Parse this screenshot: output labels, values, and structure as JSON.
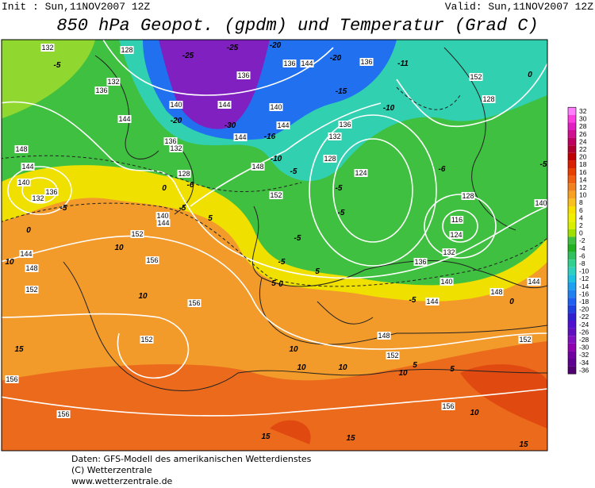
{
  "header": {
    "init": "Init : Sun,11NOV2007 12Z",
    "valid": "Valid: Sun,11NOV2007 12Z",
    "title": "850 hPa Geopot. (gpdm) und Temperatur (Grad C)"
  },
  "colorbar": {
    "levels": [
      "32",
      "30",
      "28",
      "26",
      "24",
      "22",
      "20",
      "18",
      "16",
      "14",
      "12",
      "10",
      "8",
      "6",
      "4",
      "2",
      "0",
      "-2",
      "-4",
      "-6",
      "-8",
      "-10",
      "-12",
      "-14",
      "-16",
      "-18",
      "-20",
      "-22",
      "-24",
      "-26",
      "-28",
      "-30",
      "-32",
      "-34",
      "-36"
    ],
    "colors": [
      "#ff80ff",
      "#ff40e0",
      "#e020c0",
      "#d01090",
      "#c00060",
      "#b00030",
      "#c00000",
      "#d82000",
      "#e84000",
      "#f06010",
      "#f08020",
      "#f8a020",
      "#f8c020",
      "#f8e000",
      "#f0f000",
      "#d8f000",
      "#a0e000",
      "#40c040",
      "#20b020",
      "#30c060",
      "#30d090",
      "#30d0c0",
      "#20c0e0",
      "#20a0f0",
      "#2080f0",
      "#2060f0",
      "#2040e0",
      "#3020d0",
      "#5010d0",
      "#6010c0",
      "#8010c0",
      "#9000b0",
      "#7000a0",
      "#600090",
      "#500070"
    ]
  },
  "map": {
    "geopotential_labels": [
      "132",
      "128",
      "132",
      "136",
      "140",
      "144",
      "148",
      "144",
      "140",
      "136",
      "132",
      "136",
      "136",
      "144",
      "136",
      "152",
      "128",
      "140",
      "144",
      "136",
      "132",
      "128",
      "124",
      "144",
      "148",
      "152",
      "128",
      "140",
      "116",
      "124",
      "132",
      "136",
      "140",
      "144",
      "144",
      "148",
      "148",
      "152",
      "152",
      "156",
      "156",
      "156",
      "152",
      "152",
      "156",
      "156",
      "148",
      "152",
      "144",
      "140",
      "144",
      "128",
      "136",
      "132",
      "144"
    ],
    "temperature_labels": [
      "-5",
      "-25",
      "-25",
      "-20",
      "-20",
      "-11",
      "-15",
      "-10",
      "-20",
      "-30",
      "-16",
      "-10",
      "-5",
      "-5",
      "-5",
      "-6",
      "0",
      "-5",
      "-5",
      "-5",
      "0",
      "5",
      "10",
      "10",
      "10",
      "10",
      "10",
      "10",
      "10",
      "15",
      "15",
      "15",
      "5",
      "5",
      "0",
      "-5",
      "0",
      "-5",
      "-6",
      "5",
      "10",
      "15",
      "5",
      "-5",
      "0"
    ]
  },
  "footer": {
    "lines": [
      "Daten: GFS-Modell des amerikanischen Wetterdienstes",
      "(C) Wetterzentrale",
      "www.wetterzentrale.de"
    ]
  }
}
